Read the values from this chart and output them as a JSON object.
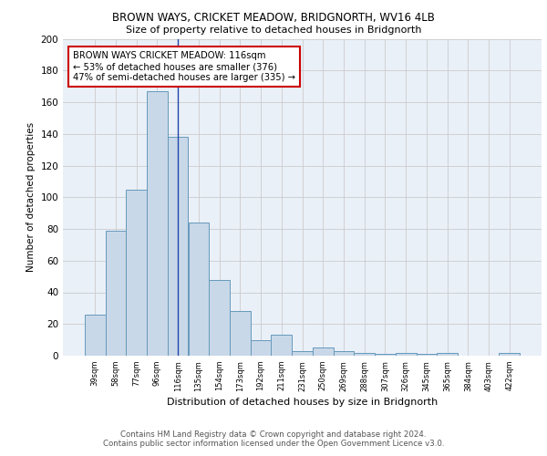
{
  "title1": "BROWN WAYS, CRICKET MEADOW, BRIDGNORTH, WV16 4LB",
  "title2": "Size of property relative to detached houses in Bridgnorth",
  "xlabel": "Distribution of detached houses by size in Bridgnorth",
  "ylabel": "Number of detached properties",
  "categories": [
    "39sqm",
    "58sqm",
    "77sqm",
    "96sqm",
    "116sqm",
    "135sqm",
    "154sqm",
    "173sqm",
    "192sqm",
    "211sqm",
    "231sqm",
    "250sqm",
    "269sqm",
    "288sqm",
    "307sqm",
    "326sqm",
    "345sqm",
    "365sqm",
    "384sqm",
    "403sqm",
    "422sqm"
  ],
  "values": [
    26,
    79,
    105,
    167,
    138,
    84,
    48,
    28,
    10,
    13,
    3,
    5,
    3,
    2,
    1,
    2,
    1,
    2,
    0,
    0,
    2
  ],
  "bar_color": "#c8d8e8",
  "bar_edge_color": "#6699bb",
  "highlight_bar_index": 4,
  "highlight_line_color": "#2244aa",
  "annotation_text": "BROWN WAYS CRICKET MEADOW: 116sqm\n← 53% of detached houses are smaller (376)\n47% of semi-detached houses are larger (335) →",
  "annotation_box_color": "#ffffff",
  "annotation_box_edge_color": "#cc0000",
  "ylim": [
    0,
    200
  ],
  "yticks": [
    0,
    20,
    40,
    60,
    80,
    100,
    120,
    140,
    160,
    180,
    200
  ],
  "grid_color": "#cccccc",
  "bg_color": "#eaf0f8",
  "footer1": "Contains HM Land Registry data © Crown copyright and database right 2024.",
  "footer2": "Contains public sector information licensed under the Open Government Licence v3.0."
}
